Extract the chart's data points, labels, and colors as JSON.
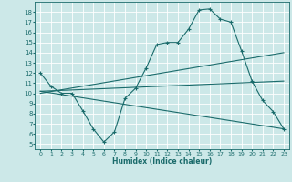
{
  "xlabel": "Humidex (Indice chaleur)",
  "ylabel": "",
  "background_color": "#cce8e8",
  "grid_color": "#ffffff",
  "line_color": "#1a6b6b",
  "xlim": [
    -0.5,
    23.5
  ],
  "ylim": [
    4.5,
    19
  ],
  "xticks": [
    0,
    1,
    2,
    3,
    4,
    5,
    6,
    7,
    8,
    9,
    10,
    11,
    12,
    13,
    14,
    15,
    16,
    17,
    18,
    19,
    20,
    21,
    22,
    23
  ],
  "yticks": [
    5,
    6,
    7,
    8,
    9,
    10,
    11,
    12,
    13,
    14,
    15,
    16,
    17,
    18
  ],
  "lines": [
    {
      "x": [
        0,
        1,
        2,
        3,
        4,
        5,
        6,
        7,
        8,
        9,
        10,
        11,
        12,
        13,
        14,
        15,
        16,
        17,
        18,
        19,
        20,
        21,
        22,
        23
      ],
      "y": [
        12,
        10.7,
        10,
        10,
        8.3,
        6.5,
        5.2,
        6.2,
        9.5,
        10.5,
        12.5,
        14.8,
        15,
        15,
        16.3,
        18.2,
        18.3,
        17.3,
        17,
        14.2,
        11.2,
        9.3,
        8.2,
        6.5
      ],
      "marker": true
    },
    {
      "x": [
        0,
        23
      ],
      "y": [
        10,
        14
      ],
      "marker": false
    },
    {
      "x": [
        0,
        23
      ],
      "y": [
        10.2,
        11.2
      ],
      "marker": false
    },
    {
      "x": [
        0,
        23
      ],
      "y": [
        10.2,
        6.5
      ],
      "marker": false
    }
  ]
}
